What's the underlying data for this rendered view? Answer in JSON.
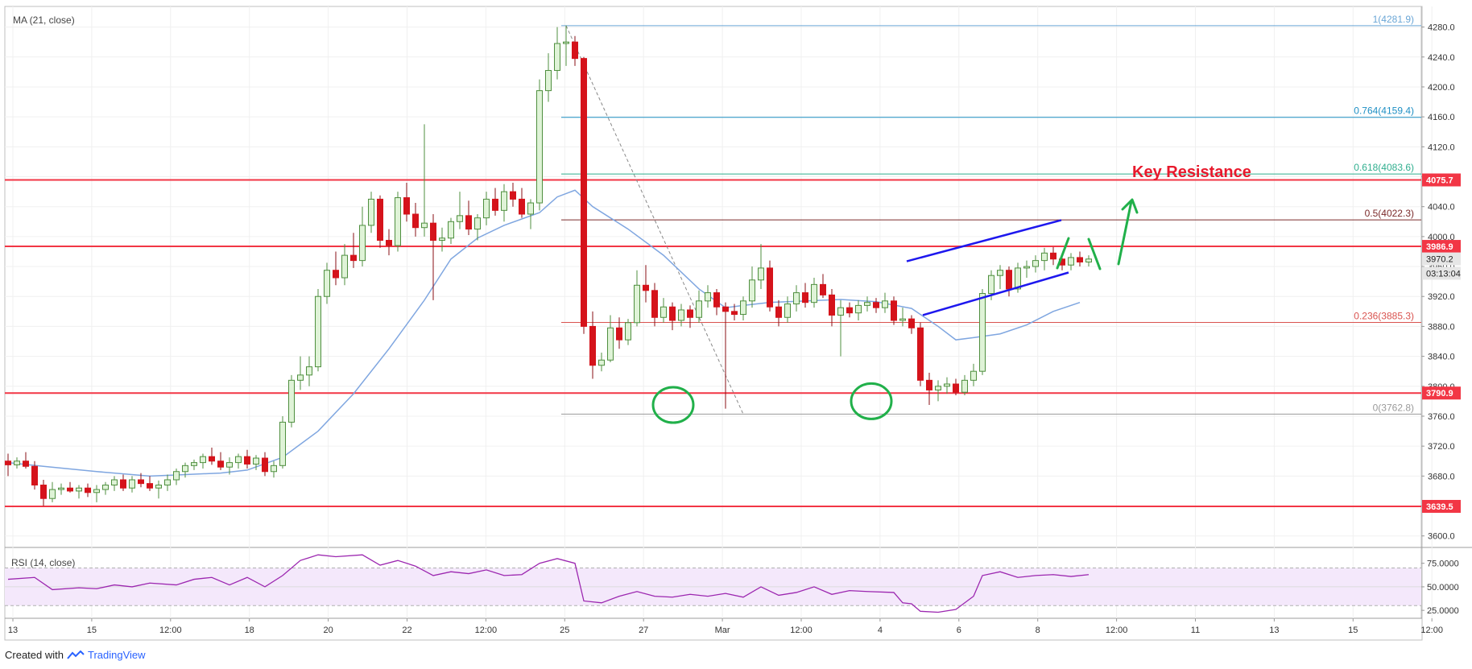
{
  "chart_data": {
    "type": "candlestick",
    "indicator_label": "MA (21, close)",
    "rsi_label": "RSI (14, close)",
    "price_axis": {
      "ylim": [
        3590,
        4300
      ],
      "ticks": [
        "4280.0",
        "4240.0",
        "4200.0",
        "4160.0",
        "4120.0",
        "4080.0",
        "4040.0",
        "4000.0",
        "3960.0",
        "3920.0",
        "3880.0",
        "3840.0",
        "3800.0",
        "3760.0",
        "3720.0",
        "3680.0",
        "3640.0",
        "3600.0"
      ]
    },
    "rsi_axis": {
      "ylim": [
        20,
        85
      ],
      "ticks": [
        "75.0000",
        "50.0000",
        "25.0000"
      ],
      "band": [
        30,
        70
      ]
    },
    "x_ticks": [
      "13",
      "15",
      "12:00",
      "18",
      "20",
      "22",
      "12:00",
      "25",
      "27",
      "Mar",
      "12:00",
      "4",
      "6",
      "8",
      "12:00",
      "11",
      "13",
      "15",
      "12:00"
    ],
    "price_labels": [
      {
        "text": "4075.7",
        "value": 4075.7,
        "color": "#f23645"
      },
      {
        "text": "3986.9",
        "value": 3986.9,
        "color": "#f23645"
      },
      {
        "text": "3970.2",
        "value": 3970.2,
        "color": "#e6e6e6"
      },
      {
        "text": "03:13:04",
        "value": 3951,
        "color": "#e6e6e6"
      },
      {
        "text": "3790.9",
        "value": 3790.9,
        "color": "#f23645"
      },
      {
        "text": "3639.5",
        "value": 3639.5,
        "color": "#f23645"
      }
    ],
    "horizontal_levels": [
      4075.7,
      3986.9,
      3790.9,
      3639.5
    ],
    "fibonacci": [
      {
        "label": "1(4281.9)",
        "value": 4281.9,
        "color": "#6aa6d6"
      },
      {
        "label": "0.764(4159.4)",
        "value": 4159.4,
        "color": "#1e8fc4"
      },
      {
        "label": "0.618(4083.6)",
        "value": 4083.6,
        "color": "#2fae8e"
      },
      {
        "label": "0.5(4022.3)",
        "value": 4022.3,
        "color": "#7b2a2a"
      },
      {
        "label": "0.236(3885.3)",
        "value": 3885.3,
        "color": "#d9534f"
      },
      {
        "label": "0(3762.8)",
        "value": 3762.8,
        "color": "#9a9a9a"
      }
    ],
    "annotation": {
      "text": "Key Resistance",
      "color": "#e8192c"
    },
    "colors": {
      "up": "#dff3d7",
      "up_border": "#4f8f3f",
      "down": "#d5131b",
      "ma": "#7fa6e0",
      "rsi": "#9c27b0",
      "rsi_band": "#f4e8fb",
      "channel": "#1d17ee",
      "circles": "#21b04a"
    },
    "candles": [
      [
        3700,
        3710,
        3680,
        3695
      ],
      [
        3695,
        3705,
        3690,
        3700
      ],
      [
        3700,
        3712,
        3690,
        3693
      ],
      [
        3693,
        3700,
        3662,
        3668
      ],
      [
        3668,
        3675,
        3640,
        3650
      ],
      [
        3650,
        3672,
        3645,
        3662
      ],
      [
        3662,
        3670,
        3655,
        3664
      ],
      [
        3664,
        3672,
        3658,
        3660
      ],
      [
        3660,
        3668,
        3650,
        3664
      ],
      [
        3664,
        3670,
        3652,
        3658
      ],
      [
        3658,
        3668,
        3645,
        3662
      ],
      [
        3662,
        3672,
        3655,
        3668
      ],
      [
        3668,
        3680,
        3660,
        3675
      ],
      [
        3675,
        3682,
        3660,
        3664
      ],
      [
        3664,
        3680,
        3658,
        3675
      ],
      [
        3675,
        3684,
        3665,
        3670
      ],
      [
        3670,
        3680,
        3660,
        3664
      ],
      [
        3664,
        3674,
        3650,
        3668
      ],
      [
        3668,
        3682,
        3660,
        3675
      ],
      [
        3675,
        3690,
        3668,
        3686
      ],
      [
        3686,
        3698,
        3678,
        3694
      ],
      [
        3694,
        3702,
        3688,
        3698
      ],
      [
        3698,
        3710,
        3690,
        3706
      ],
      [
        3706,
        3718,
        3695,
        3700
      ],
      [
        3700,
        3712,
        3688,
        3692
      ],
      [
        3692,
        3705,
        3682,
        3698
      ],
      [
        3698,
        3710,
        3690,
        3706
      ],
      [
        3706,
        3715,
        3690,
        3696
      ],
      [
        3696,
        3708,
        3688,
        3704
      ],
      [
        3704,
        3712,
        3680,
        3686
      ],
      [
        3686,
        3700,
        3678,
        3694
      ],
      [
        3694,
        3760,
        3690,
        3752
      ],
      [
        3752,
        3815,
        3745,
        3808
      ],
      [
        3808,
        3840,
        3795,
        3815
      ],
      [
        3815,
        3840,
        3800,
        3826
      ],
      [
        3826,
        3930,
        3820,
        3920
      ],
      [
        3920,
        3965,
        3910,
        3955
      ],
      [
        3955,
        3980,
        3935,
        3945
      ],
      [
        3945,
        3990,
        3935,
        3975
      ],
      [
        3975,
        4005,
        3958,
        3968
      ],
      [
        3968,
        4040,
        3960,
        4015
      ],
      [
        4015,
        4060,
        4005,
        4050
      ],
      [
        4050,
        4055,
        3985,
        3995
      ],
      [
        3995,
        4010,
        3975,
        3988
      ],
      [
        3988,
        4060,
        3980,
        4052
      ],
      [
        4052,
        4072,
        4020,
        4030
      ],
      [
        4030,
        4045,
        4000,
        4012
      ],
      [
        4012,
        4150,
        4000,
        4018
      ],
      [
        4018,
        4030,
        3915,
        3995
      ],
      [
        3995,
        4012,
        3980,
        3998
      ],
      [
        3998,
        4025,
        3990,
        4020
      ],
      [
        4020,
        4060,
        4010,
        4028
      ],
      [
        4028,
        4048,
        4002,
        4010
      ],
      [
        4010,
        4030,
        3995,
        4025
      ],
      [
        4025,
        4060,
        4015,
        4050
      ],
      [
        4050,
        4065,
        4028,
        4035
      ],
      [
        4035,
        4070,
        4020,
        4060
      ],
      [
        4060,
        4072,
        4040,
        4050
      ],
      [
        4050,
        4065,
        4025,
        4030
      ],
      [
        4030,
        4050,
        4010,
        4045
      ],
      [
        4045,
        4210,
        4035,
        4195
      ],
      [
        4195,
        4245,
        4180,
        4222
      ],
      [
        4222,
        4280,
        4210,
        4258
      ],
      [
        4258,
        4282,
        4228,
        4260
      ],
      [
        4260,
        4268,
        4228,
        4238
      ],
      [
        4238,
        4240,
        3870,
        3880
      ],
      [
        3880,
        3900,
        3810,
        3828
      ],
      [
        3828,
        3845,
        3820,
        3835
      ],
      [
        3835,
        3895,
        3832,
        3878
      ],
      [
        3878,
        3892,
        3850,
        3862
      ],
      [
        3862,
        3890,
        3855,
        3885
      ],
      [
        3885,
        3955,
        3880,
        3935
      ],
      [
        3935,
        3962,
        3912,
        3928
      ],
      [
        3928,
        3938,
        3880,
        3892
      ],
      [
        3892,
        3918,
        3885,
        3906
      ],
      [
        3906,
        3912,
        3875,
        3888
      ],
      [
        3888,
        3910,
        3880,
        3902
      ],
      [
        3902,
        3908,
        3878,
        3892
      ],
      [
        3892,
        3928,
        3885,
        3914
      ],
      [
        3914,
        3935,
        3905,
        3925
      ],
      [
        3925,
        3930,
        3895,
        3906
      ],
      [
        3906,
        3912,
        3770,
        3900
      ],
      [
        3900,
        3910,
        3888,
        3896
      ],
      [
        3896,
        3920,
        3888,
        3914
      ],
      [
        3914,
        3960,
        3905,
        3942
      ],
      [
        3942,
        3990,
        3930,
        3958
      ],
      [
        3958,
        3968,
        3900,
        3906
      ],
      [
        3906,
        3915,
        3880,
        3892
      ],
      [
        3892,
        3920,
        3885,
        3910
      ],
      [
        3910,
        3935,
        3900,
        3925
      ],
      [
        3925,
        3938,
        3905,
        3912
      ],
      [
        3912,
        3945,
        3905,
        3936
      ],
      [
        3936,
        3950,
        3918,
        3922
      ],
      [
        3922,
        3930,
        3880,
        3895
      ],
      [
        3895,
        3915,
        3840,
        3905
      ],
      [
        3905,
        3912,
        3892,
        3898
      ],
      [
        3898,
        3915,
        3888,
        3908
      ],
      [
        3908,
        3920,
        3900,
        3912
      ],
      [
        3912,
        3918,
        3898,
        3905
      ],
      [
        3905,
        3925,
        3898,
        3914
      ],
      [
        3914,
        3920,
        3882,
        3888
      ],
      [
        3888,
        3905,
        3880,
        3890
      ],
      [
        3890,
        3895,
        3870,
        3878
      ],
      [
        3878,
        3885,
        3800,
        3808
      ],
      [
        3808,
        3818,
        3775,
        3795
      ],
      [
        3795,
        3808,
        3780,
        3800
      ],
      [
        3800,
        3812,
        3790,
        3803
      ],
      [
        3803,
        3810,
        3788,
        3792
      ],
      [
        3792,
        3815,
        3788,
        3808
      ],
      [
        3808,
        3830,
        3800,
        3820
      ],
      [
        3820,
        3930,
        3815,
        3924
      ],
      [
        3924,
        3955,
        3915,
        3948
      ],
      [
        3948,
        3962,
        3930,
        3955
      ],
      [
        3955,
        3960,
        3920,
        3930
      ],
      [
        3930,
        3965,
        3925,
        3958
      ],
      [
        3958,
        3968,
        3945,
        3960
      ],
      [
        3960,
        3975,
        3952,
        3968
      ],
      [
        3968,
        3985,
        3955,
        3978
      ],
      [
        3978,
        3986,
        3962,
        3970
      ],
      [
        3970,
        3978,
        3955,
        3962
      ],
      [
        3962,
        3978,
        3955,
        3972
      ],
      [
        3972,
        3980,
        3960,
        3966
      ],
      [
        3966,
        3975,
        3960,
        3970
      ]
    ],
    "ma": [
      [
        0,
        3698
      ],
      [
        4,
        3693
      ],
      [
        10,
        3686
      ],
      [
        16,
        3680
      ],
      [
        20,
        3682
      ],
      [
        24,
        3684
      ],
      [
        27,
        3688
      ],
      [
        31,
        3705
      ],
      [
        35,
        3740
      ],
      [
        39,
        3790
      ],
      [
        43,
        3850
      ],
      [
        47,
        3915
      ],
      [
        50,
        3970
      ],
      [
        53,
        3998
      ],
      [
        56,
        4015
      ],
      [
        60,
        4032
      ],
      [
        62,
        4053
      ],
      [
        64,
        4062
      ],
      [
        66,
        4040
      ],
      [
        70,
        4010
      ],
      [
        74,
        3975
      ],
      [
        78,
        3930
      ],
      [
        81,
        3905
      ],
      [
        83,
        3908
      ],
      [
        86,
        3912
      ],
      [
        90,
        3914
      ],
      [
        94,
        3916
      ],
      [
        98,
        3913
      ],
      [
        102,
        3904
      ],
      [
        105,
        3880
      ],
      [
        107,
        3862
      ],
      [
        109,
        3865
      ],
      [
        112,
        3870
      ],
      [
        115,
        3882
      ],
      [
        118,
        3900
      ],
      [
        121,
        3912
      ]
    ],
    "rsi": [
      [
        0,
        58
      ],
      [
        3,
        60
      ],
      [
        5,
        47
      ],
      [
        8,
        49
      ],
      [
        10,
        48
      ],
      [
        12,
        52
      ],
      [
        14,
        50
      ],
      [
        16,
        54
      ],
      [
        19,
        52
      ],
      [
        21,
        58
      ],
      [
        23,
        60
      ],
      [
        25,
        52
      ],
      [
        27,
        60
      ],
      [
        29,
        50
      ],
      [
        31,
        62
      ],
      [
        33,
        78
      ],
      [
        35,
        84
      ],
      [
        37,
        82
      ],
      [
        40,
        84
      ],
      [
        42,
        73
      ],
      [
        44,
        78
      ],
      [
        46,
        72
      ],
      [
        48,
        62
      ],
      [
        50,
        66
      ],
      [
        52,
        64
      ],
      [
        54,
        68
      ],
      [
        56,
        62
      ],
      [
        58,
        63
      ],
      [
        60,
        75
      ],
      [
        62,
        80
      ],
      [
        64,
        75
      ],
      [
        65,
        35
      ],
      [
        67,
        33
      ],
      [
        69,
        40
      ],
      [
        71,
        45
      ],
      [
        73,
        40
      ],
      [
        75,
        39
      ],
      [
        77,
        42
      ],
      [
        79,
        40
      ],
      [
        81,
        43
      ],
      [
        83,
        39
      ],
      [
        85,
        50
      ],
      [
        87,
        41
      ],
      [
        89,
        44
      ],
      [
        91,
        50
      ],
      [
        93,
        42
      ],
      [
        95,
        46
      ],
      [
        97,
        45
      ],
      [
        100,
        44
      ],
      [
        101,
        33
      ],
      [
        102,
        32
      ],
      [
        103,
        24
      ],
      [
        105,
        23
      ],
      [
        107,
        26
      ],
      [
        109,
        40
      ],
      [
        110,
        62
      ],
      [
        112,
        66
      ],
      [
        114,
        60
      ],
      [
        116,
        62
      ],
      [
        118,
        63
      ],
      [
        120,
        61
      ],
      [
        122,
        63
      ]
    ]
  }
}
